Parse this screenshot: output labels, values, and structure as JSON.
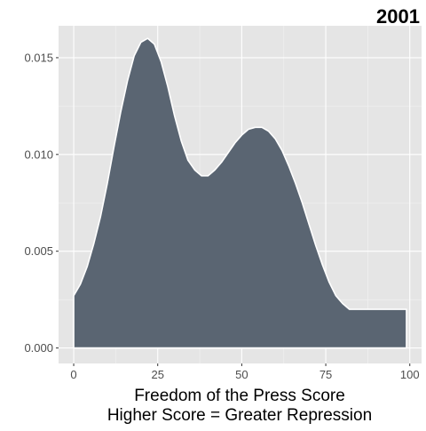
{
  "chart_data": {
    "type": "area",
    "title": "2001",
    "xlabel": [
      "Freedom of the Press Score",
      "Higher Score = Greater Repression"
    ],
    "ylabel": "",
    "xlim": [
      -4.5,
      103.5
    ],
    "ylim": [
      -0.0008,
      0.01665
    ],
    "x_ticks": [
      0,
      25,
      50,
      75,
      100
    ],
    "y_ticks": [
      0.0,
      0.005,
      0.01,
      0.015
    ],
    "y_tick_labels": [
      "0.000",
      "0.005",
      "0.010",
      "0.015"
    ],
    "grid": true,
    "legend": "none",
    "series": [
      {
        "x": [
          0,
          2,
          4,
          6,
          8,
          10,
          12,
          14,
          16,
          18,
          20,
          22,
          24,
          26,
          28,
          30,
          32,
          34,
          36,
          38,
          40,
          42,
          44,
          46,
          48,
          50,
          52,
          54,
          56,
          58,
          60,
          62,
          64,
          66,
          68,
          70,
          72,
          74,
          76,
          78,
          80,
          82,
          84,
          86,
          88,
          90,
          92,
          94,
          96,
          98,
          99
        ],
        "y": [
          0.0027,
          0.0033,
          0.0042,
          0.0054,
          0.0068,
          0.0085,
          0.0104,
          0.0122,
          0.0138,
          0.0151,
          0.0158,
          0.016,
          0.0157,
          0.0148,
          0.0135,
          0.012,
          0.0107,
          0.0097,
          0.0092,
          0.0089,
          0.0089,
          0.0092,
          0.0096,
          0.0101,
          0.0106,
          0.011,
          0.0113,
          0.0114,
          0.0114,
          0.0112,
          0.0108,
          0.0102,
          0.0094,
          0.0085,
          0.0075,
          0.0064,
          0.0053,
          0.0043,
          0.0034,
          0.0027,
          0.0023,
          0.002,
          0.002,
          0.002,
          0.002,
          0.002,
          0.002,
          0.002,
          0.002,
          0.002,
          0.002
        ]
      }
    ],
    "colors": {
      "fill": "#5a6572",
      "outline": "#ffffff",
      "panel": "#e5e5e5",
      "grid_major": "#ffffff",
      "grid_minor": "#f2f2f2",
      "tick_text": "#4d4d4d",
      "axis_text": "#000000"
    }
  }
}
